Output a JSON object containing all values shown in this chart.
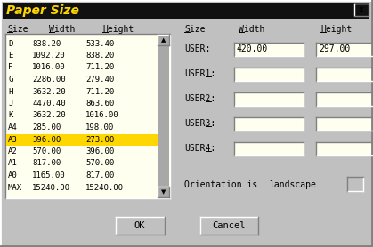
{
  "title": "Paper Size",
  "title_color": "#FFD700",
  "title_bg": "#111111",
  "dialog_bg": "#C0C0C0",
  "list_bg": "#FFFFF0",
  "highlight_row": "A3",
  "highlight_color": "#FFD700",
  "highlight_text": "#000000",
  "input_bg": "#FFFFF0",
  "table_data": [
    [
      "D",
      "838.20",
      "533.40"
    ],
    [
      "E",
      "1092.20",
      "838.20"
    ],
    [
      "F",
      "1016.00",
      "711.20"
    ],
    [
      "G",
      "2286.00",
      "279.40"
    ],
    [
      "H",
      "3632.20",
      "711.20"
    ],
    [
      "J",
      "4470.40",
      "863.60"
    ],
    [
      "K",
      "3632.20",
      "1016.00"
    ],
    [
      "A4",
      "285.00",
      "198.00"
    ],
    [
      "A3",
      "396.00",
      "273.00"
    ],
    [
      "A2",
      "570.00",
      "396.00"
    ],
    [
      "A1",
      "817.00",
      "570.00"
    ],
    [
      "A0",
      "1165.00",
      "817.00"
    ],
    [
      "MAX",
      "15240.00",
      "15240.00"
    ]
  ],
  "col_headers_left": [
    "Size",
    "Width",
    "Height"
  ],
  "col_headers_right": [
    "Size",
    "Width",
    "Height"
  ],
  "user_labels": [
    "USER:",
    "USER1:",
    "USER2:",
    "USER3:",
    "USER4:"
  ],
  "user_underline_idx": [
    -1,
    4,
    4,
    4,
    4
  ],
  "user_values": [
    [
      "420.00",
      "297.00"
    ],
    [
      "",
      ""
    ],
    [
      "",
      ""
    ],
    [
      "",
      ""
    ],
    [
      "",
      ""
    ]
  ],
  "orientation_text": "Orientation is",
  "orientation_value": "landscape",
  "ok_label": "OK",
  "cancel_label": "Cancel",
  "border_dark": "#808080",
  "border_light": "#FFFFFF",
  "text_color": "#000000"
}
